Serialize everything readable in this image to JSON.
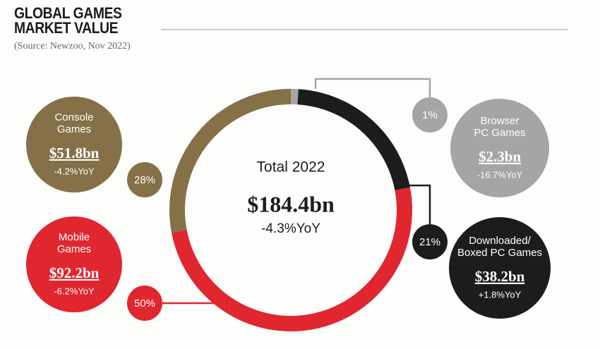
{
  "chart_data": {
    "type": "donut",
    "title": "GLOBAL GAMES\nMARKET VALUE",
    "subtitle": "(Source: Newzoo, Nov 2022)",
    "center_title": "Total 2022",
    "total_label": "$184.4bn",
    "total_yoy": "-4.3%YoY",
    "categories": [
      "Browser\nPC Games",
      "Downloaded/\nBoxed PC Games",
      "Mobile\nGames",
      "Console\nGames"
    ],
    "values": [
      1,
      21,
      50,
      28
    ],
    "value_labels": [
      "1%",
      "21%",
      "50%",
      "28%"
    ],
    "revenue_labels": [
      "$2.3bn",
      "$38.2bn",
      "$92.2bn",
      "$51.8bn"
    ],
    "yoy_labels": [
      "-16.7%YoY",
      "+1.8%YoY",
      "-6.2%YoY",
      "-4.2%YoY"
    ],
    "colors": [
      "#a5a5a5",
      "#1c1c1c",
      "#e0262f",
      "#857048"
    ]
  }
}
